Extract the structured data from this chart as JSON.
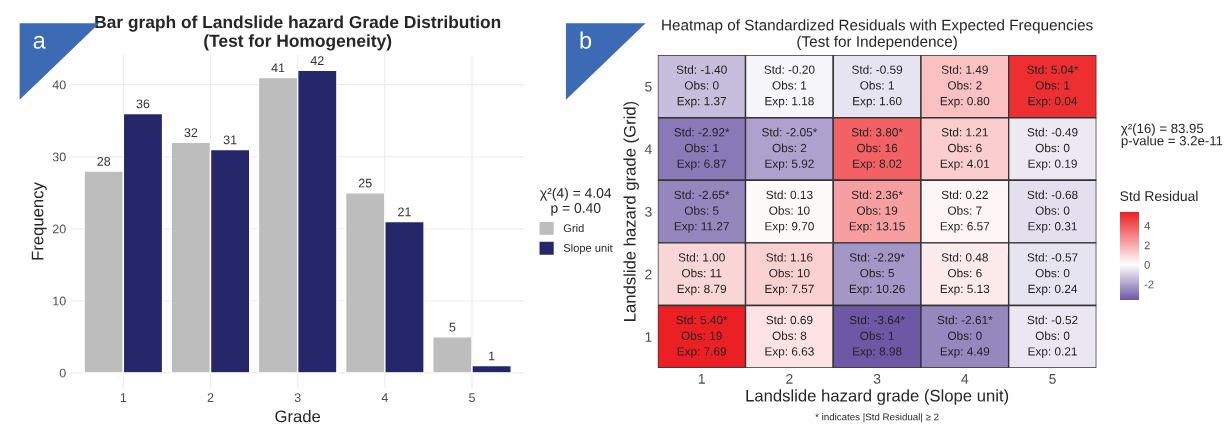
{
  "chart_data": [
    {
      "type": "bar",
      "title": "Bar graph of Landslide hazard Grade Distribution\n(Test for Homogeneity)",
      "xlabel": "Grade",
      "ylabel": "Frequency",
      "legend_title": "χ²(4) = 4.04\np = 0.40",
      "categories": [
        "1",
        "2",
        "3",
        "4",
        "5"
      ],
      "series": [
        {
          "name": "Grid",
          "color": "#bdbdbd",
          "values": [
            28,
            32,
            41,
            25,
            5
          ]
        },
        {
          "name": "Slope unit",
          "color": "#26266b",
          "values": [
            36,
            31,
            42,
            21,
            1
          ]
        }
      ],
      "ylim": [
        -2.1,
        44.1
      ],
      "yticks": [
        0,
        10,
        20,
        30,
        40
      ],
      "grid": true,
      "legend": "right",
      "data_labels": true,
      "annotations": [
        "a"
      ]
    },
    {
      "type": "heatmap",
      "title": "Heatmap of Standardized Residuals with Expected Frequencies\n(Test for Independence)",
      "xlabel": "Landslide hazard grade (Slope unit)",
      "ylabel": "Landslide hazard grade (Grid)",
      "clabel": "Std Residual",
      "categories": [
        "1",
        "2",
        "3",
        "4",
        "5"
      ],
      "y_categories": [
        "5",
        "4",
        "3",
        "2",
        "1"
      ],
      "cells": [
        [
          -1.4,
          -0.2,
          -0.59,
          1.49,
          5.04
        ],
        [
          -2.92,
          -2.05,
          3.8,
          1.21,
          -0.49
        ],
        [
          -2.65,
          0.13,
          2.36,
          0.22,
          -0.68
        ],
        [
          1.0,
          1.16,
          -2.29,
          0.48,
          -0.57
        ],
        [
          5.4,
          0.69,
          -3.64,
          -2.61,
          -0.52
        ]
      ],
      "cell_labels": [
        [
          "Std: -1.40\nObs: 0\nExp: 1.37",
          "Std: -0.20\nObs: 1\nExp: 1.18",
          "Std: -0.59\nObs: 1\nExp: 1.60",
          "Std: 1.49\nObs: 2\nExp: 0.80",
          "Std: 5.04*\nObs: 1\nExp: 0.04"
        ],
        [
          "Std: -2.92*\nObs: 1\nExp: 6.87",
          "Std: -2.05*\nObs: 2\nExp: 5.92",
          "Std: 3.80*\nObs: 16\nExp: 8.02",
          "Std: 1.21\nObs: 6\nExp: 4.01",
          "Std: -0.49\nObs: 0\nExp: 0.19"
        ],
        [
          "Std: -2.65*\nObs: 5\nExp: 11.27",
          "Std: 0.13\nObs: 10\nExp: 9.70",
          "Std: 2.36*\nObs: 19\nExp: 13.15",
          "Std: 0.22\nObs: 7\nExp: 6.57",
          "Std: -0.68\nObs: 0\nExp: 0.31"
        ],
        [
          "Std: 1.00\nObs: 11\nExp: 8.79",
          "Std: 1.16\nObs: 10\nExp: 7.57",
          "Std: -2.29*\nObs: 5\nExp: 10.26",
          "Std: 0.48\nObs: 6\nExp: 5.13",
          "Std: -0.57\nObs: 0\nExp: 0.24"
        ],
        [
          "Std: 5.40*\nObs: 19\nExp: 7.69",
          "Std: 0.69\nObs: 8\nExp: 6.63",
          "Std: -3.64*\nObs: 1\nExp: 8.98",
          "Std: -2.61*\nObs: 0\nExp: 4.49",
          "Std: -0.52\nObs: 0\nExp: 0.21"
        ]
      ],
      "clim": [
        -3.64,
        5.4
      ],
      "cticks": [
        -2,
        0,
        2,
        4
      ],
      "annotations": [
        "b",
        "χ²(16) = 83.95\np-value = 3.2e-11",
        "* indicates |Std Residual| ≥ 2"
      ]
    }
  ]
}
